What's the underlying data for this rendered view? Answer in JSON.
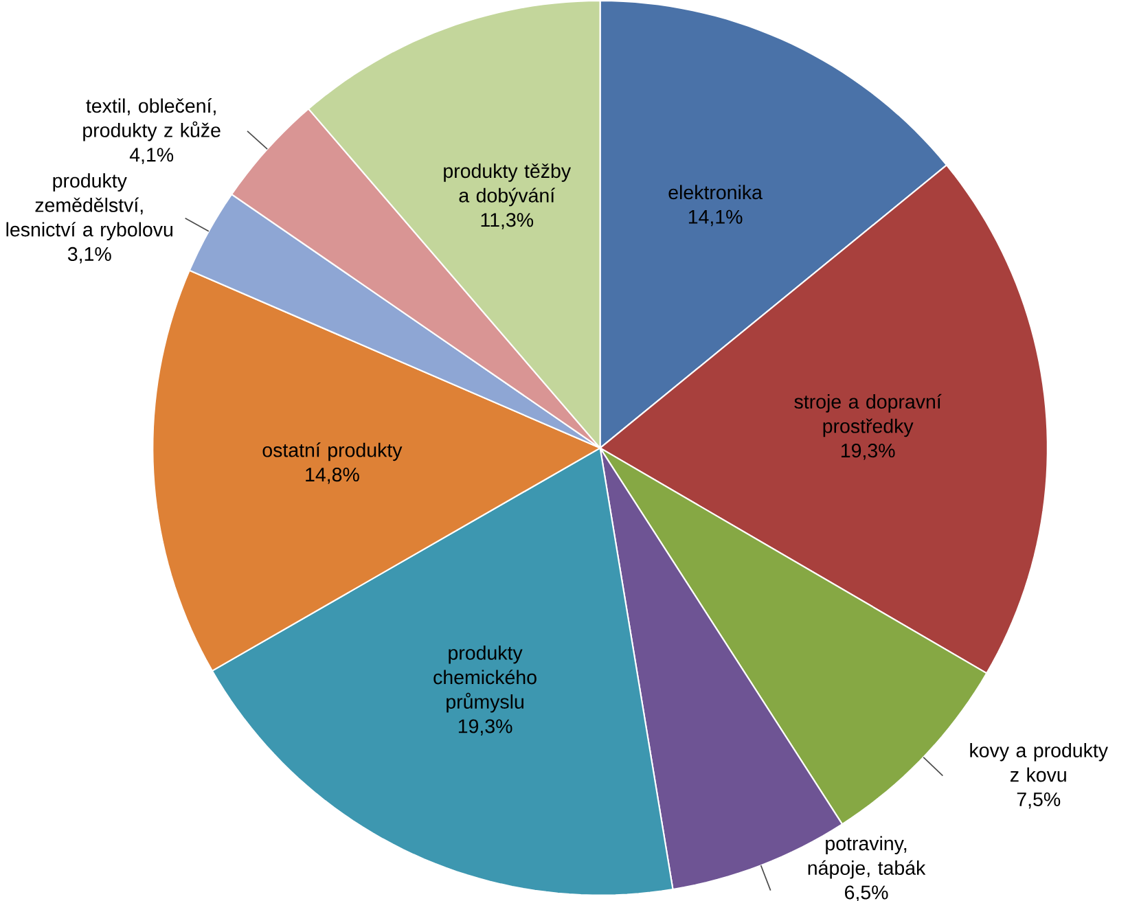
{
  "chart_data": {
    "type": "pie",
    "categories": [
      "elektronika",
      "stroje a dopravní prostředky",
      "kovy a produkty z kovu",
      "potraviny, nápoje, tabák",
      "produkty chemického průmyslu",
      "ostatní produkty",
      "produkty zemědělství, lesnictví a rybolovu",
      "textil, oblečení, produkty z kůže",
      "produkty těžby a dobývání"
    ],
    "values": [
      14.1,
      19.3,
      7.5,
      6.5,
      19.3,
      14.8,
      3.1,
      4.1,
      11.3
    ],
    "value_labels": [
      "14,1%",
      "19,3%",
      "7,5%",
      "6,5%",
      "19,3%",
      "14,8%",
      "3,1%",
      "4,1%",
      "11,3%"
    ],
    "colors": [
      "#4a72a8",
      "#a8403d",
      "#86a844",
      "#6e5494",
      "#3d97b0",
      "#de8136",
      "#8ea6d4",
      "#d99594",
      "#c3d69b"
    ]
  }
}
